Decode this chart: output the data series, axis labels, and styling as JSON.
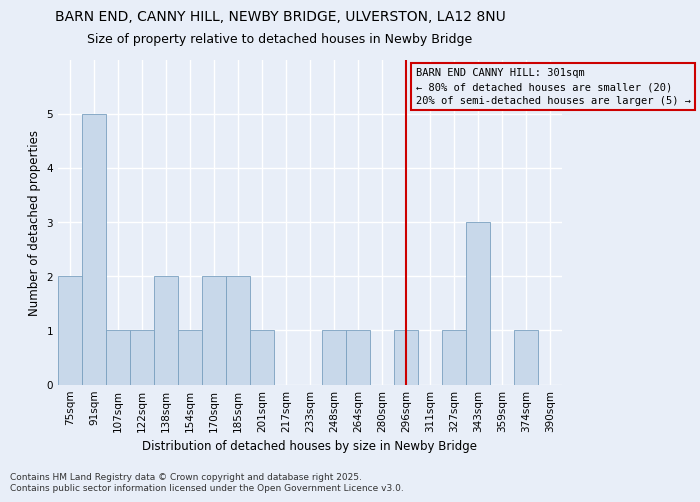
{
  "title": "BARN END, CANNY HILL, NEWBY BRIDGE, ULVERSTON, LA12 8NU",
  "subtitle": "Size of property relative to detached houses in Newby Bridge",
  "xlabel": "Distribution of detached houses by size in Newby Bridge",
  "ylabel": "Number of detached properties",
  "footnote1": "Contains HM Land Registry data © Crown copyright and database right 2025.",
  "footnote2": "Contains public sector information licensed under the Open Government Licence v3.0.",
  "categories": [
    "75sqm",
    "91sqm",
    "107sqm",
    "122sqm",
    "138sqm",
    "154sqm",
    "170sqm",
    "185sqm",
    "201sqm",
    "217sqm",
    "233sqm",
    "248sqm",
    "264sqm",
    "280sqm",
    "296sqm",
    "311sqm",
    "327sqm",
    "343sqm",
    "359sqm",
    "374sqm",
    "390sqm"
  ],
  "values": [
    2,
    5,
    1,
    1,
    2,
    1,
    2,
    2,
    1,
    0,
    0,
    1,
    1,
    0,
    1,
    0,
    1,
    3,
    0,
    1,
    0
  ],
  "bar_color": "#c8d8ea",
  "bar_edge_color": "#7aa0c0",
  "vline_x_index": 14,
  "vline_color": "#cc0000",
  "annotation_text": "BARN END CANNY HILL: 301sqm\n← 80% of detached houses are smaller (20)\n20% of semi-detached houses are larger (5) →",
  "annotation_box_color": "#cc0000",
  "ylim": [
    0,
    6
  ],
  "yticks": [
    0,
    1,
    2,
    3,
    4,
    5,
    6
  ],
  "background_color": "#e8eef8",
  "grid_color": "#ffffff",
  "title_fontsize": 10,
  "subtitle_fontsize": 9,
  "axis_label_fontsize": 8.5,
  "tick_fontsize": 7.5,
  "annotation_fontsize": 7.5,
  "footnote_fontsize": 6.5
}
